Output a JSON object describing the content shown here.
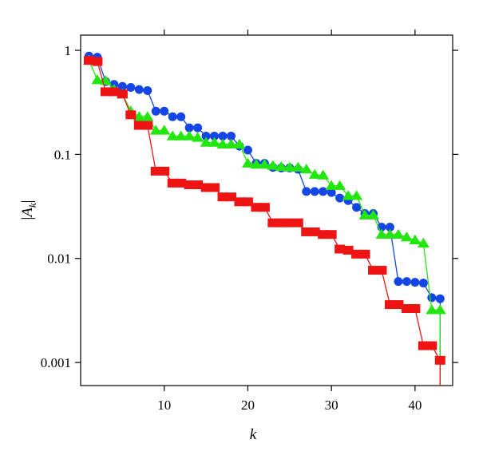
{
  "chart_data": {
    "type": "line",
    "xlabel": "k",
    "ylabel": "|A_k|",
    "ylabel_parts": {
      "open": "|",
      "main": "A",
      "sub": "k",
      "close": "|"
    },
    "xlim": [
      0,
      44.5
    ],
    "ylim": [
      0.0006,
      1.4
    ],
    "y_scale": "log",
    "x_ticks": [
      10,
      20,
      30,
      40
    ],
    "x_tick_labels": [
      "10",
      "20",
      "30",
      "40"
    ],
    "y_ticks": [
      0.001,
      0.01,
      0.1,
      1
    ],
    "y_tick_labels": [
      "0.001",
      "0.01",
      "0.1",
      "1"
    ],
    "grid": false,
    "series": [
      {
        "marker": "circle",
        "color": "#1446e6",
        "x": [
          1,
          2,
          3,
          4,
          5,
          6,
          7,
          8,
          9,
          10,
          11,
          12,
          13,
          14,
          15,
          16,
          17,
          18,
          19,
          20,
          21,
          22,
          23,
          24,
          25,
          26,
          27,
          28,
          29,
          30,
          31,
          32,
          33,
          34,
          35,
          36,
          37,
          38,
          39,
          40,
          41,
          42,
          43
        ],
        "y": [
          0.88,
          0.86,
          0.5,
          0.47,
          0.45,
          0.44,
          0.42,
          0.41,
          0.26,
          0.26,
          0.23,
          0.23,
          0.18,
          0.18,
          0.15,
          0.15,
          0.15,
          0.15,
          0.12,
          0.11,
          0.082,
          0.082,
          0.075,
          0.074,
          0.074,
          0.072,
          0.044,
          0.044,
          0.044,
          0.043,
          0.038,
          0.036,
          0.031,
          0.027,
          0.027,
          0.02,
          0.02,
          0.006,
          0.006,
          0.0059,
          0.0058,
          0.0042,
          0.0041
        ]
      },
      {
        "marker": "triangle",
        "color": "#22e60e",
        "x": [
          1,
          2,
          3,
          4,
          5,
          6,
          7,
          8,
          9,
          10,
          11,
          12,
          13,
          14,
          15,
          16,
          17,
          18,
          19,
          20,
          21,
          22,
          23,
          24,
          25,
          26,
          27,
          28,
          29,
          30,
          31,
          32,
          33,
          34,
          35,
          36,
          37,
          38,
          39,
          40,
          41,
          42,
          43
        ],
        "y": [
          0.8,
          0.52,
          0.51,
          0.42,
          0.38,
          0.26,
          0.23,
          0.23,
          0.17,
          0.17,
          0.15,
          0.15,
          0.15,
          0.145,
          0.13,
          0.13,
          0.125,
          0.125,
          0.125,
          0.082,
          0.08,
          0.08,
          0.078,
          0.076,
          0.075,
          0.075,
          0.072,
          0.064,
          0.063,
          0.05,
          0.05,
          0.04,
          0.04,
          0.026,
          0.026,
          0.017,
          0.017,
          0.017,
          0.016,
          0.015,
          0.014,
          0.0032,
          0.0032
        ]
      },
      {
        "marker": "square",
        "color": "#ee1414",
        "x": [
          1,
          2,
          3,
          4,
          5,
          6,
          7,
          8,
          9,
          10,
          11,
          12,
          13,
          14,
          15,
          16,
          17,
          18,
          19,
          20,
          21,
          22,
          23,
          24,
          25,
          26,
          27,
          28,
          29,
          30,
          31,
          32,
          33,
          34,
          35,
          36,
          37,
          38,
          39,
          40,
          41,
          42,
          43
        ],
        "y": [
          0.8,
          0.78,
          0.4,
          0.4,
          0.38,
          0.24,
          0.19,
          0.19,
          0.069,
          0.069,
          0.053,
          0.053,
          0.051,
          0.051,
          0.048,
          0.048,
          0.039,
          0.039,
          0.035,
          0.035,
          0.031,
          0.031,
          0.022,
          0.022,
          0.022,
          0.022,
          0.018,
          0.018,
          0.017,
          0.017,
          0.0123,
          0.012,
          0.011,
          0.011,
          0.0077,
          0.0077,
          0.0036,
          0.0036,
          0.0033,
          0.0033,
          0.00145,
          0.00145,
          0.00105
        ]
      }
    ]
  }
}
